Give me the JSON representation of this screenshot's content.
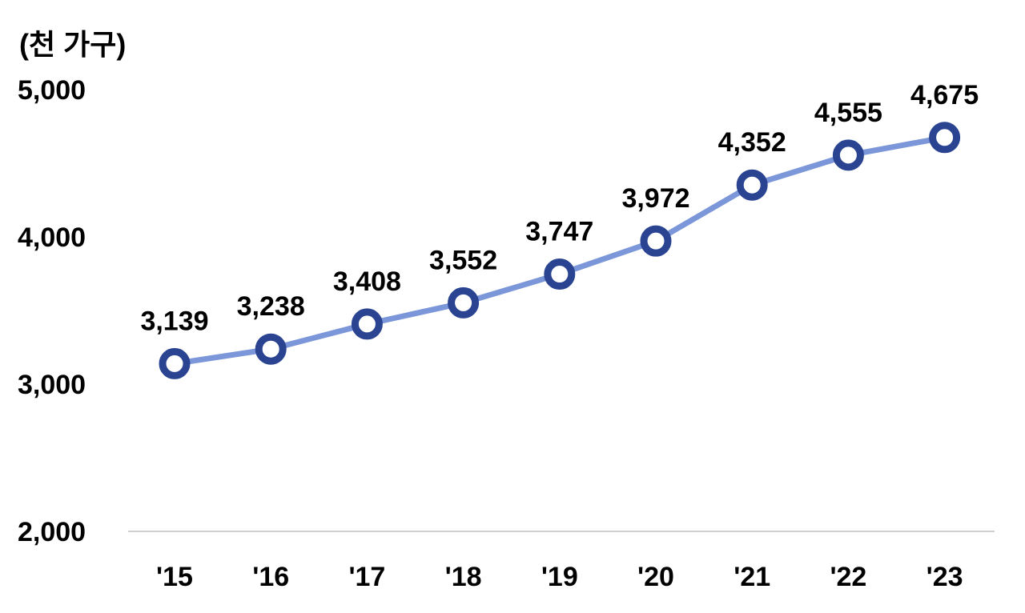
{
  "chart_data": {
    "type": "line",
    "unit_label": "(천 가구)",
    "title": "",
    "xlabel": "",
    "ylabel": "",
    "categories": [
      "'15",
      "'16",
      "'17",
      "'18",
      "'19",
      "'20",
      "'21",
      "'22",
      "'23"
    ],
    "series": [
      {
        "values": [
          3139,
          3238,
          3408,
          3552,
          3747,
          3972,
          4352,
          4555,
          4675
        ],
        "labels": [
          "3,139",
          "3,238",
          "3,408",
          "3,552",
          "3,747",
          "3,972",
          "4,352",
          "4,555",
          "4,675"
        ]
      }
    ],
    "ylim": [
      2000,
      5000
    ],
    "yticks": [
      {
        "value": 2000,
        "label": "2,000"
      },
      {
        "value": 3000,
        "label": "3,000"
      },
      {
        "value": 4000,
        "label": "4,000"
      },
      {
        "value": 5000,
        "label": "5,000"
      }
    ],
    "grid": false,
    "legend": "none",
    "colors": {
      "line": "#7b96d9",
      "marker_ring": "#2a4492",
      "marker_fill": "#ffffff",
      "axis": "#d0d0d0"
    }
  }
}
